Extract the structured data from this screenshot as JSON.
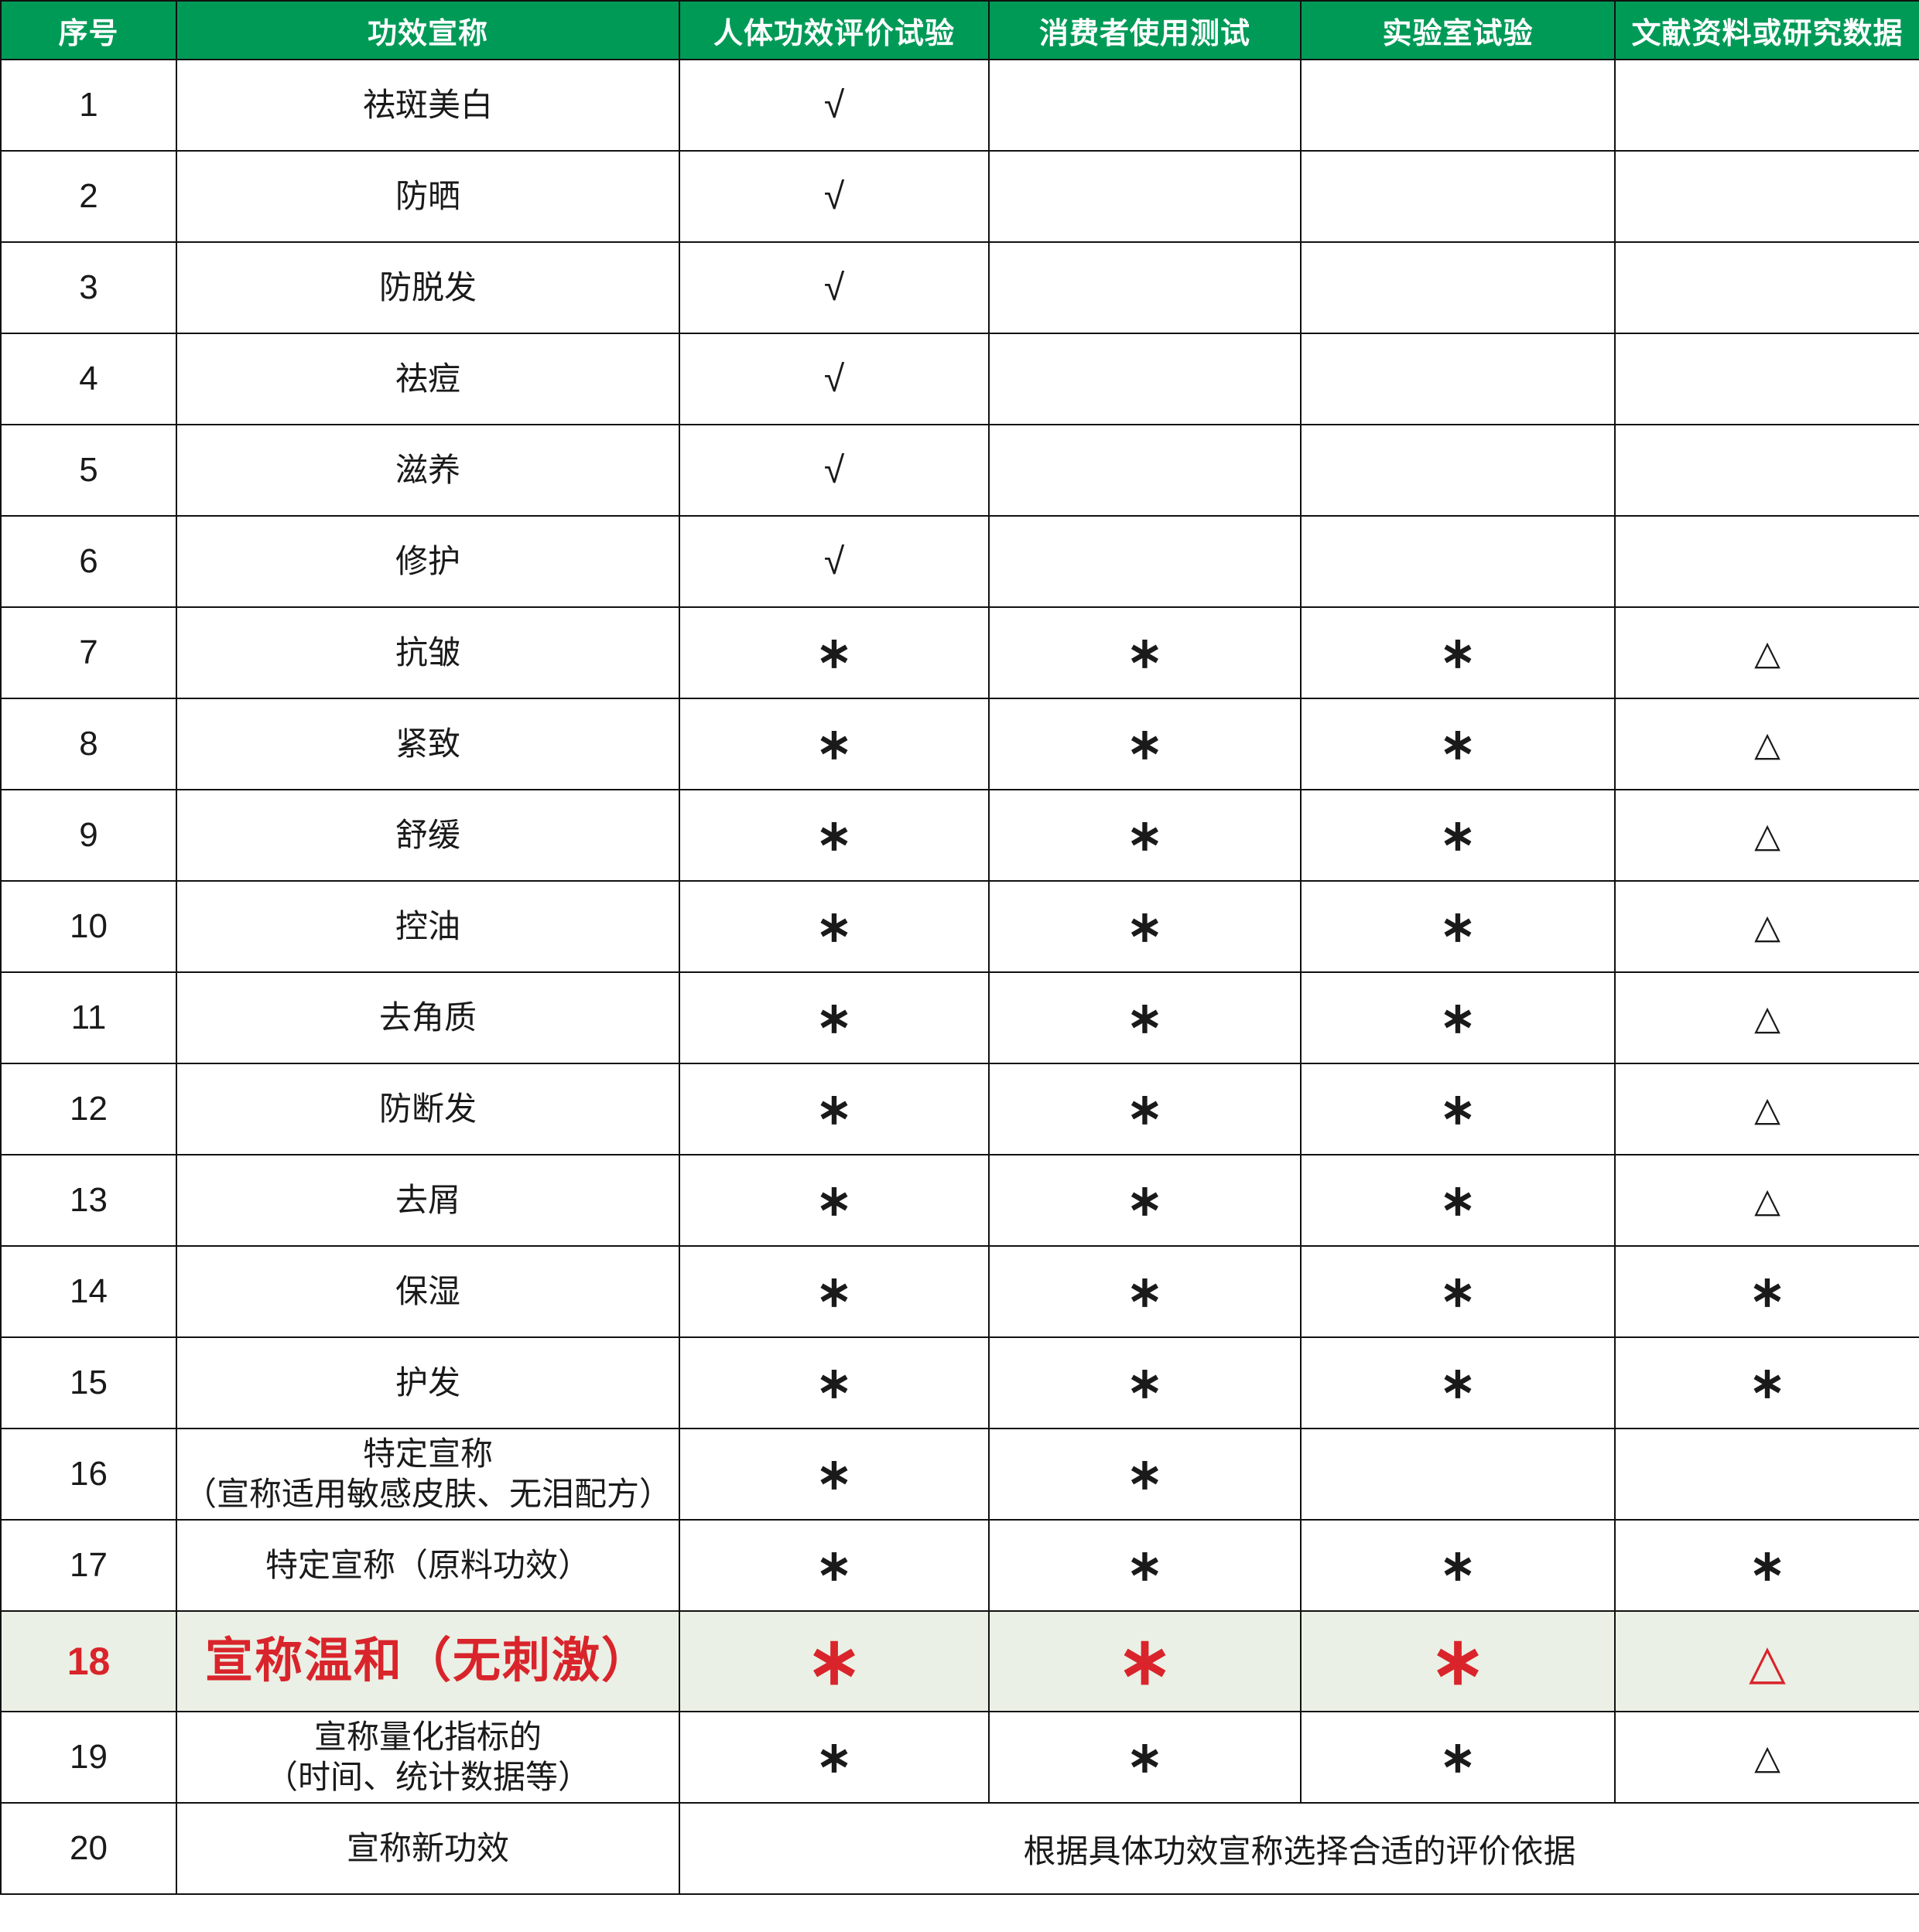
{
  "table": {
    "headers": [
      "序号",
      "功效宣称",
      "人体功效评价试验",
      "消费者使用测试",
      "实验室试验",
      "文献资料或研究数据"
    ],
    "symbols": {
      "check": "√",
      "asterisk": "∗",
      "triangle": "△"
    },
    "colors": {
      "header_bg": "#009a57",
      "header_text": "#ffffff",
      "highlight_bg": "#eaf0e5",
      "highlight_text": "#d9242b",
      "border": "#111111"
    },
    "rows": [
      {
        "id": "1",
        "claim": "祛斑美白",
        "marks": [
          "check",
          "",
          "",
          ""
        ]
      },
      {
        "id": "2",
        "claim": "防晒",
        "marks": [
          "check",
          "",
          "",
          ""
        ]
      },
      {
        "id": "3",
        "claim": "防脱发",
        "marks": [
          "check",
          "",
          "",
          ""
        ]
      },
      {
        "id": "4",
        "claim": "祛痘",
        "marks": [
          "check",
          "",
          "",
          ""
        ]
      },
      {
        "id": "5",
        "claim": "滋养",
        "marks": [
          "check",
          "",
          "",
          ""
        ]
      },
      {
        "id": "6",
        "claim": "修护",
        "marks": [
          "check",
          "",
          "",
          ""
        ]
      },
      {
        "id": "7",
        "claim": "抗皱",
        "marks": [
          "asterisk",
          "asterisk",
          "asterisk",
          "triangle"
        ]
      },
      {
        "id": "8",
        "claim": "紧致",
        "marks": [
          "asterisk",
          "asterisk",
          "asterisk",
          "triangle"
        ]
      },
      {
        "id": "9",
        "claim": "舒缓",
        "marks": [
          "asterisk",
          "asterisk",
          "asterisk",
          "triangle"
        ]
      },
      {
        "id": "10",
        "claim": "控油",
        "marks": [
          "asterisk",
          "asterisk",
          "asterisk",
          "triangle"
        ]
      },
      {
        "id": "11",
        "claim": "去角质",
        "marks": [
          "asterisk",
          "asterisk",
          "asterisk",
          "triangle"
        ]
      },
      {
        "id": "12",
        "claim": "防断发",
        "marks": [
          "asterisk",
          "asterisk",
          "asterisk",
          "triangle"
        ]
      },
      {
        "id": "13",
        "claim": "去屑",
        "marks": [
          "asterisk",
          "asterisk",
          "asterisk",
          "triangle"
        ]
      },
      {
        "id": "14",
        "claim": "保湿",
        "marks": [
          "asterisk",
          "asterisk",
          "asterisk",
          "asterisk"
        ]
      },
      {
        "id": "15",
        "claim": "护发",
        "marks": [
          "asterisk",
          "asterisk",
          "asterisk",
          "asterisk"
        ]
      },
      {
        "id": "16",
        "claim": "特定宣称\n（宣称适用敏感皮肤、无泪配方）",
        "marks": [
          "asterisk",
          "asterisk",
          "",
          ""
        ]
      },
      {
        "id": "17",
        "claim": "特定宣称（原料功效）",
        "marks": [
          "asterisk",
          "asterisk",
          "asterisk",
          "asterisk"
        ]
      },
      {
        "id": "18",
        "claim": "宣称温和（无刺激）",
        "marks": [
          "asterisk",
          "asterisk",
          "asterisk",
          "triangle"
        ],
        "highlight": true
      },
      {
        "id": "19",
        "claim": "宣称量化指标的\n（时间、统计数据等）",
        "marks": [
          "asterisk",
          "asterisk",
          "asterisk",
          "triangle"
        ]
      },
      {
        "id": "20",
        "claim": "宣称新功效",
        "merged_note": "根据具体功效宣称选择合适的评价依据"
      }
    ]
  }
}
